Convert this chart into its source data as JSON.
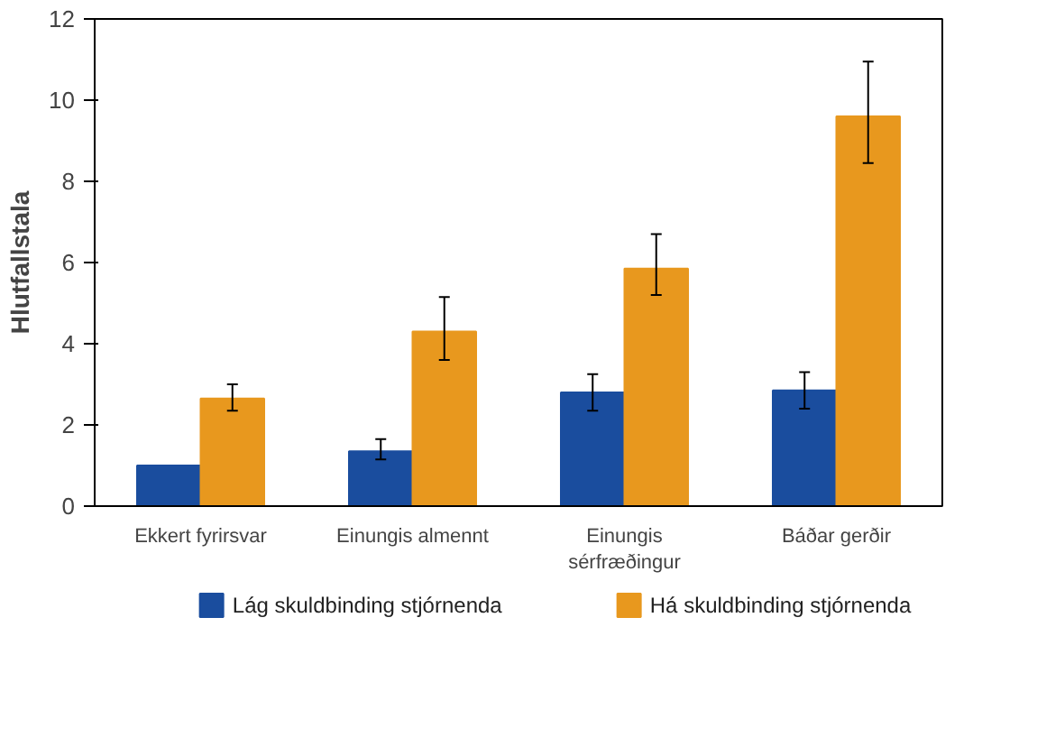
{
  "chart_data": {
    "type": "bar",
    "ylabel": "Hlutfallstala",
    "categories": [
      "Ekkert fyrirsvar",
      "Einungis almennt",
      "Einungis\nsérfræðingur",
      "Báðar gerðir"
    ],
    "series": [
      {
        "name": "Lág skuldbinding stjórnenda",
        "color": "#1a4d9e",
        "values": [
          1.0,
          1.35,
          2.8,
          2.85
        ],
        "errors": [
          null,
          [
            1.15,
            1.65
          ],
          [
            2.35,
            3.25
          ],
          [
            2.4,
            3.3
          ]
        ]
      },
      {
        "name": "Há skuldbinding stjórnenda",
        "color": "#e8981e",
        "values": [
          2.65,
          4.3,
          5.85,
          9.6
        ],
        "errors": [
          [
            2.35,
            3.0
          ],
          [
            3.6,
            5.15
          ],
          [
            5.2,
            6.7
          ],
          [
            8.45,
            10.95
          ]
        ]
      }
    ],
    "ylim": [
      0,
      12
    ],
    "yticks": [
      0,
      2,
      4,
      6,
      8,
      10,
      12
    ],
    "grid": false,
    "legend": "bottom"
  }
}
